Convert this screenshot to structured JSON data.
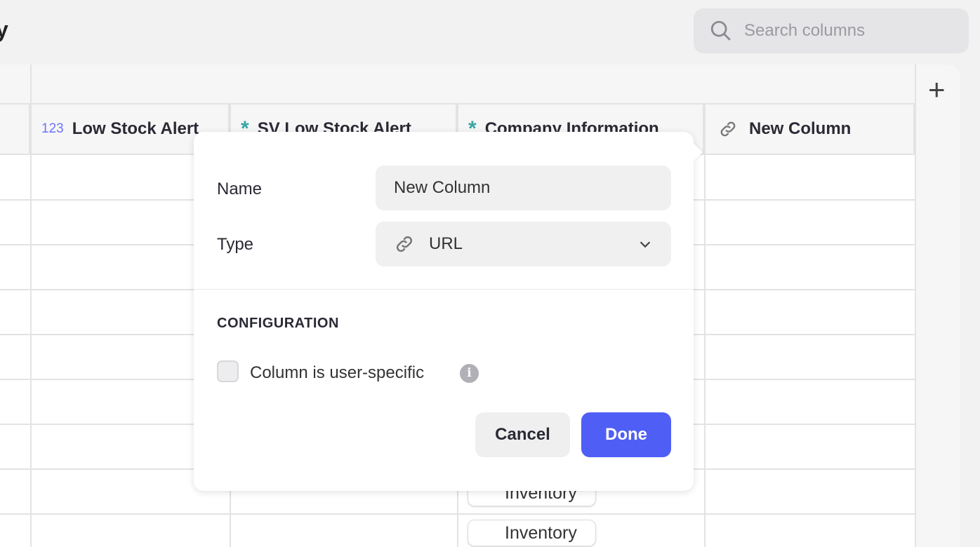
{
  "header": {
    "title_fragment": "y",
    "search_placeholder": "Search columns"
  },
  "columns": [
    {
      "icon": "number-icon",
      "icon_text": "123",
      "label": "Low Stock Alert",
      "icon_color": "#6b74f5"
    },
    {
      "icon": "asterisk-icon",
      "icon_text": "*",
      "label": "SV Low Stock Alert",
      "icon_color": "#3aa5a5"
    },
    {
      "icon": "asterisk-icon",
      "icon_text": "*",
      "label": "Company Information",
      "icon_color": "#3aa5a5"
    },
    {
      "icon": "link-icon",
      "label": "New Column"
    }
  ],
  "cells": {
    "company_chips": [
      "Inventory",
      "Inventory"
    ]
  },
  "add_column_label": "+",
  "popover": {
    "name_label": "Name",
    "name_value": "New Column",
    "type_label": "Type",
    "type_value": "URL",
    "config_heading": "CONFIGURATION",
    "user_specific_label": "Column is user-specific",
    "user_specific_checked": false,
    "info_icon": "i",
    "cancel": "Cancel",
    "done": "Done"
  },
  "colors": {
    "accent": "#4f5ff5"
  }
}
